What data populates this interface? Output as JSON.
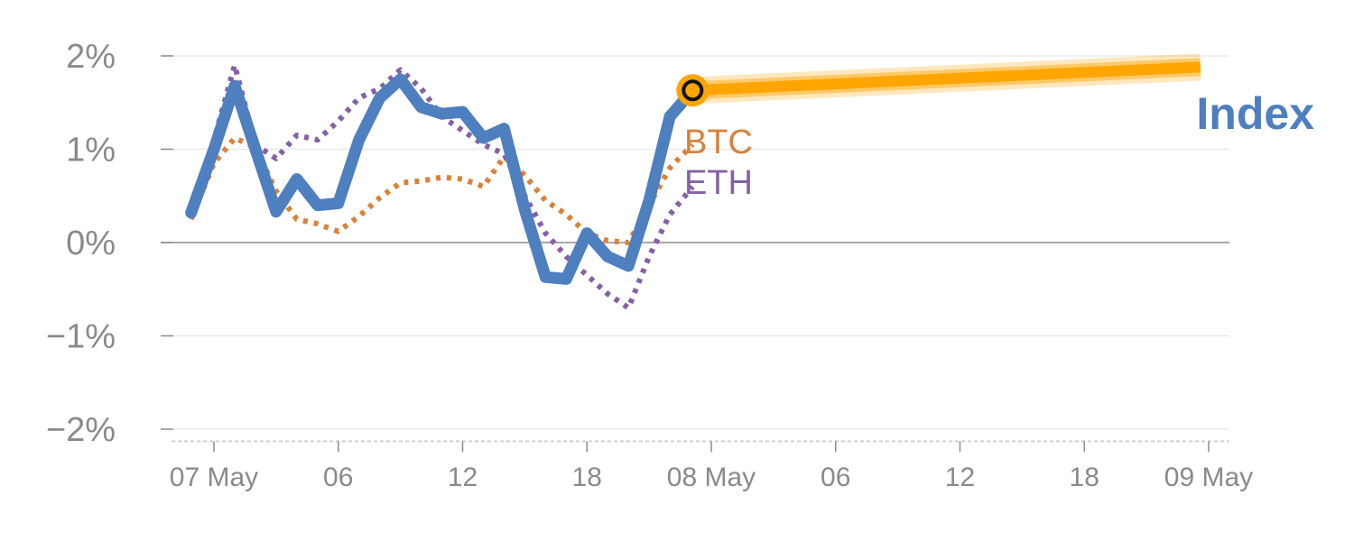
{
  "chart_data": {
    "type": "line",
    "title": "",
    "xlabel": "",
    "ylabel": "",
    "ylim": [
      -2.1,
      2.1
    ],
    "y_ticks": [
      {
        "value": 2,
        "label": "2%"
      },
      {
        "value": 1,
        "label": "1%"
      },
      {
        "value": 0,
        "label": "0%"
      },
      {
        "value": -1,
        "label": "−1%"
      },
      {
        "value": -2,
        "label": "−2%"
      }
    ],
    "x_ticks": [
      {
        "hours": 0,
        "label": "07 May"
      },
      {
        "hours": 6,
        "label": "06"
      },
      {
        "hours": 12,
        "label": "12"
      },
      {
        "hours": 18,
        "label": "18"
      },
      {
        "hours": 24,
        "label": "08 May"
      },
      {
        "hours": 30,
        "label": "06"
      },
      {
        "hours": 36,
        "label": "12"
      },
      {
        "hours": 42,
        "label": "18"
      },
      {
        "hours": 48,
        "label": "09 May"
      }
    ],
    "grid": true,
    "series": [
      {
        "name": "Index",
        "color": "#4e7fbf",
        "style": "solid",
        "x": [
          -1.1,
          0,
          1,
          2,
          3,
          4,
          5,
          6,
          7,
          8,
          9,
          10,
          11,
          12,
          13,
          14,
          15,
          16,
          17,
          18,
          19,
          20,
          21,
          22,
          23.1
        ],
        "y": [
          0.32,
          1.0,
          1.68,
          1.0,
          0.33,
          0.68,
          0.4,
          0.42,
          1.1,
          1.55,
          1.75,
          1.45,
          1.38,
          1.4,
          1.12,
          1.22,
          0.35,
          -0.37,
          -0.39,
          0.1,
          -0.15,
          -0.25,
          0.45,
          1.35,
          1.63
        ]
      },
      {
        "name": "BTC",
        "color": "#d9823b",
        "style": "dotted",
        "x": [
          -1.1,
          0,
          1,
          2,
          3,
          4,
          5,
          6,
          7,
          8,
          9,
          10,
          11,
          12,
          13,
          14,
          15,
          16,
          17,
          18,
          19,
          20,
          21,
          22,
          23.1
        ],
        "y": [
          0.25,
          0.85,
          1.12,
          1.02,
          0.55,
          0.25,
          0.2,
          0.12,
          0.28,
          0.48,
          0.64,
          0.66,
          0.7,
          0.68,
          0.6,
          0.92,
          0.72,
          0.45,
          0.3,
          0.1,
          0.02,
          0.0,
          0.4,
          0.8,
          1.05
        ]
      },
      {
        "name": "ETH",
        "color": "#8461a3",
        "style": "dotted",
        "x": [
          -1.1,
          0,
          1,
          2,
          3,
          4,
          5,
          6,
          7,
          8,
          9,
          10,
          11,
          12,
          13,
          14,
          15,
          16,
          17,
          18,
          19,
          20,
          21,
          22,
          23.1
        ],
        "y": [
          0.28,
          1.1,
          1.9,
          1.05,
          0.9,
          1.15,
          1.1,
          1.3,
          1.55,
          1.65,
          1.85,
          1.65,
          1.35,
          1.2,
          1.05,
          0.95,
          0.5,
          0.1,
          -0.15,
          -0.35,
          -0.55,
          -0.7,
          -0.15,
          0.3,
          0.6
        ]
      }
    ],
    "forecast": {
      "color": "#ffa500",
      "x": [
        23.1,
        47.6
      ],
      "y": [
        1.63,
        1.88
      ]
    },
    "current_marker": {
      "x": 23.1,
      "y": 1.63
    }
  }
}
